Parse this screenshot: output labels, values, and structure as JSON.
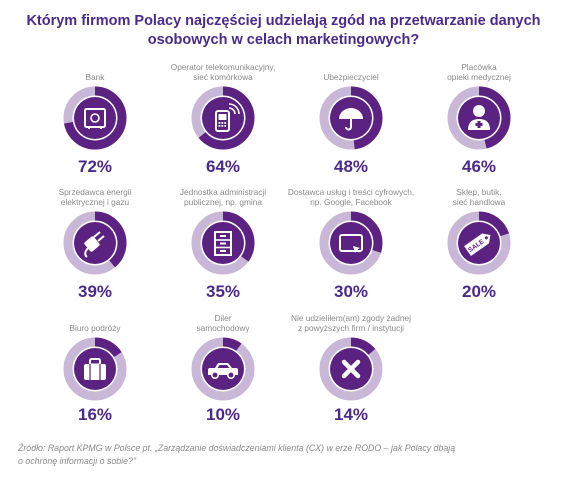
{
  "title_line1": "Którym firmom Polacy najczęściej udzielają zgód na przetwarzanie danych",
  "title_line2": "osobowych w celach marketingowych?",
  "source_line1": "Źródło: Raport KPMG w Polsce pt. „Zarządzanie doświadczeniami klienta (CX) w erze RODO – jak Polacy dbają",
  "source_line2": "o ochronę informacji o sobie?\"",
  "colors": {
    "accent": "#5c2282",
    "ring_track": "#c9b7d8",
    "title": "#4a2a8c",
    "label": "#8a8a8a"
  },
  "chart_data": {
    "type": "donut",
    "unit": "%",
    "items": [
      {
        "label_lines": [
          "Bank"
        ],
        "value": 72,
        "value_label": "72%",
        "icon": "safe-icon"
      },
      {
        "label_lines": [
          "Operator telekomunikacyjny,",
          "sieć komórkowa"
        ],
        "value": 64,
        "value_label": "64%",
        "icon": "mobile-phone-icon"
      },
      {
        "label_lines": [
          "Ubezpieczyciel"
        ],
        "value": 48,
        "value_label": "48%",
        "icon": "umbrella-icon"
      },
      {
        "label_lines": [
          "Placówka",
          "opieki medycznej"
        ],
        "value": 46,
        "value_label": "46%",
        "icon": "doctor-icon"
      },
      {
        "label_lines": [
          "Sprzedawca energii",
          "elektrycznej i gazu"
        ],
        "value": 39,
        "value_label": "39%",
        "icon": "plug-icon"
      },
      {
        "label_lines": [
          "Jednostka administracji",
          "publicznej, np. gmina"
        ],
        "value": 35,
        "value_label": "35%",
        "icon": "filing-cabinet-icon"
      },
      {
        "label_lines": [
          "Dostawca usług i treści cyfrowych,",
          "np. Google, Facebook"
        ],
        "value": 30,
        "value_label": "30%",
        "icon": "tablet-icon"
      },
      {
        "label_lines": [
          "Sklep, butik,",
          "sieć handlowa"
        ],
        "value": 20,
        "value_label": "20%",
        "icon": "sale-tag-icon"
      },
      {
        "label_lines": [
          "Biuro podróży"
        ],
        "value": 16,
        "value_label": "16%",
        "icon": "suitcase-icon"
      },
      {
        "label_lines": [
          "Diler",
          "samochodowy"
        ],
        "value": 10,
        "value_label": "10%",
        "icon": "car-icon"
      },
      {
        "label_lines": [
          "Nie udzieliłem(am) zgody żadnej",
          "z powyższych firm / instytucji"
        ],
        "value": 14,
        "value_label": "14%",
        "icon": "cross-icon"
      }
    ]
  }
}
